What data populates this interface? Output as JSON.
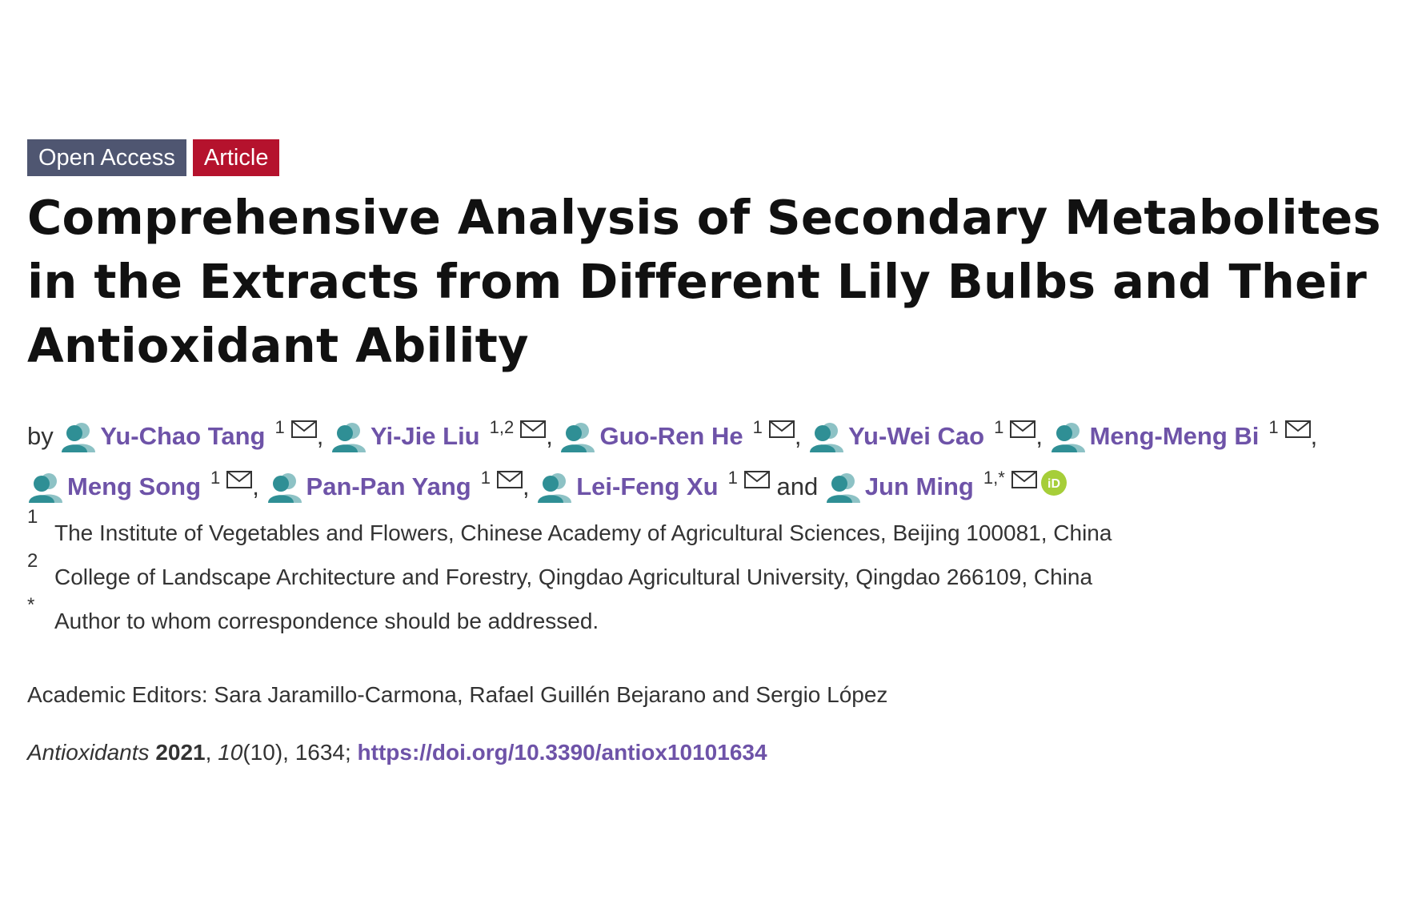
{
  "badges": {
    "open_access": "Open Access",
    "article_type": "Article"
  },
  "title": "Comprehensive Analysis of Secondary Metabolites in the Extracts from Different Lily Bulbs and Their Antioxidant Ability",
  "authors_prefix": "by",
  "authors": [
    {
      "name": "Yu-Chao Tang",
      "sup": "1",
      "sep": ","
    },
    {
      "name": "Yi-Jie Liu",
      "sup": "1,2",
      "sep": ","
    },
    {
      "name": "Guo-Ren He",
      "sup": "1",
      "sep": ","
    },
    {
      "name": "Yu-Wei Cao",
      "sup": "1",
      "sep": ","
    },
    {
      "name": "Meng-Meng Bi",
      "sup": "1",
      "sep": ","
    },
    {
      "name": "Meng Song",
      "sup": "1",
      "sep": ","
    },
    {
      "name": "Pan-Pan Yang",
      "sup": "1",
      "sep": ","
    },
    {
      "name": "Lei-Feng Xu",
      "sup": "1",
      "sep": ""
    },
    {
      "name": "Jun Ming",
      "sup": "1,*",
      "sep": ""
    }
  ],
  "authors_and": "and",
  "affiliations": [
    {
      "num": "1",
      "text": "The Institute of Vegetables and Flowers, Chinese Academy of Agricultural Sciences, Beijing 100081, China"
    },
    {
      "num": "2",
      "text": "College of Landscape Architecture and Forestry, Qingdao Agricultural University, Qingdao 266109, China"
    },
    {
      "num": "*",
      "text": "Author to whom correspondence should be addressed."
    }
  ],
  "editors": "Academic Editors: Sara Jaramillo-Carmona, Rafael Guillén Bejarano and Sergio López",
  "citation": {
    "journal": "Antioxidants",
    "year": "2021",
    "volume": "10",
    "issue_pages": "(10), 1634;",
    "doi": "https://doi.org/10.3390/antiox10101634"
  },
  "colors": {
    "open_access_bg": "#4f5671",
    "article_bg": "#b5122d",
    "link": "#6e53a8",
    "avatar": "#2f8f95",
    "orcid": "#a6ce39"
  },
  "icons": {
    "author": "person-avatar-icon",
    "mail": "envelope-icon",
    "orcid": "orcid-icon"
  }
}
